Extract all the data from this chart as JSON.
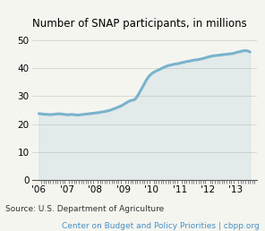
{
  "title": "Number of SNAP participants, in millions",
  "source_text": "Source: U.S. Department of Agriculture",
  "footer_text": "Center on Budget and Policy Priorities | cbpp.org",
  "footer_color": "#4a90c4",
  "line_color": "#7ab3cc",
  "line_width": 2.2,
  "ylim": [
    0,
    52
  ],
  "yticks": [
    0,
    10,
    20,
    30,
    40,
    50
  ],
  "x_years": [
    "'06",
    "'07",
    "'08",
    "'09",
    "'10",
    "'11",
    "'12",
    "'13"
  ],
  "x_values": [
    2006,
    2007,
    2008,
    2009,
    2010,
    2011,
    2012,
    2013
  ],
  "data_x": [
    2006.0,
    2006.083,
    2006.167,
    2006.25,
    2006.333,
    2006.417,
    2006.5,
    2006.583,
    2006.667,
    2006.75,
    2006.833,
    2006.917,
    2007.0,
    2007.083,
    2007.167,
    2007.25,
    2007.333,
    2007.417,
    2007.5,
    2007.583,
    2007.667,
    2007.75,
    2007.833,
    2007.917,
    2008.0,
    2008.083,
    2008.167,
    2008.25,
    2008.333,
    2008.417,
    2008.5,
    2008.583,
    2008.667,
    2008.75,
    2008.833,
    2008.917,
    2009.0,
    2009.083,
    2009.167,
    2009.25,
    2009.333,
    2009.417,
    2009.5,
    2009.583,
    2009.667,
    2009.75,
    2009.833,
    2009.917,
    2010.0,
    2010.083,
    2010.167,
    2010.25,
    2010.333,
    2010.417,
    2010.5,
    2010.583,
    2010.667,
    2010.75,
    2010.833,
    2010.917,
    2011.0,
    2011.083,
    2011.167,
    2011.25,
    2011.333,
    2011.417,
    2011.5,
    2011.583,
    2011.667,
    2011.75,
    2011.833,
    2011.917,
    2012.0,
    2012.083,
    2012.167,
    2012.25,
    2012.333,
    2012.417,
    2012.5,
    2012.583,
    2012.667,
    2012.75,
    2012.833,
    2012.917,
    2013.0,
    2013.083,
    2013.167,
    2013.25,
    2013.333,
    2013.417,
    2013.5
  ],
  "data_y": [
    23.8,
    23.7,
    23.6,
    23.5,
    23.5,
    23.4,
    23.5,
    23.6,
    23.7,
    23.7,
    23.6,
    23.5,
    23.4,
    23.4,
    23.5,
    23.4,
    23.3,
    23.3,
    23.4,
    23.5,
    23.6,
    23.7,
    23.8,
    23.9,
    24.0,
    24.1,
    24.2,
    24.4,
    24.5,
    24.7,
    24.9,
    25.2,
    25.5,
    25.8,
    26.2,
    26.5,
    27.0,
    27.5,
    28.0,
    28.4,
    28.6,
    28.9,
    30.0,
    31.5,
    33.0,
    34.5,
    36.0,
    37.2,
    38.0,
    38.6,
    39.0,
    39.4,
    39.8,
    40.2,
    40.6,
    40.9,
    41.1,
    41.3,
    41.5,
    41.6,
    41.8,
    42.0,
    42.2,
    42.4,
    42.5,
    42.7,
    42.9,
    43.0,
    43.1,
    43.3,
    43.5,
    43.7,
    44.0,
    44.2,
    44.4,
    44.5,
    44.6,
    44.7,
    44.8,
    44.9,
    45.0,
    45.1,
    45.2,
    45.3,
    45.6,
    45.8,
    46.0,
    46.2,
    46.3,
    46.2,
    45.8
  ],
  "background_color": "#f5f5f0",
  "plot_bg_color": "#f5f5f0",
  "grid_color": "#cccccc",
  "title_fontsize": 8.5,
  "tick_fontsize": 7.5,
  "source_fontsize": 6.5,
  "footer_fontsize": 6.5
}
